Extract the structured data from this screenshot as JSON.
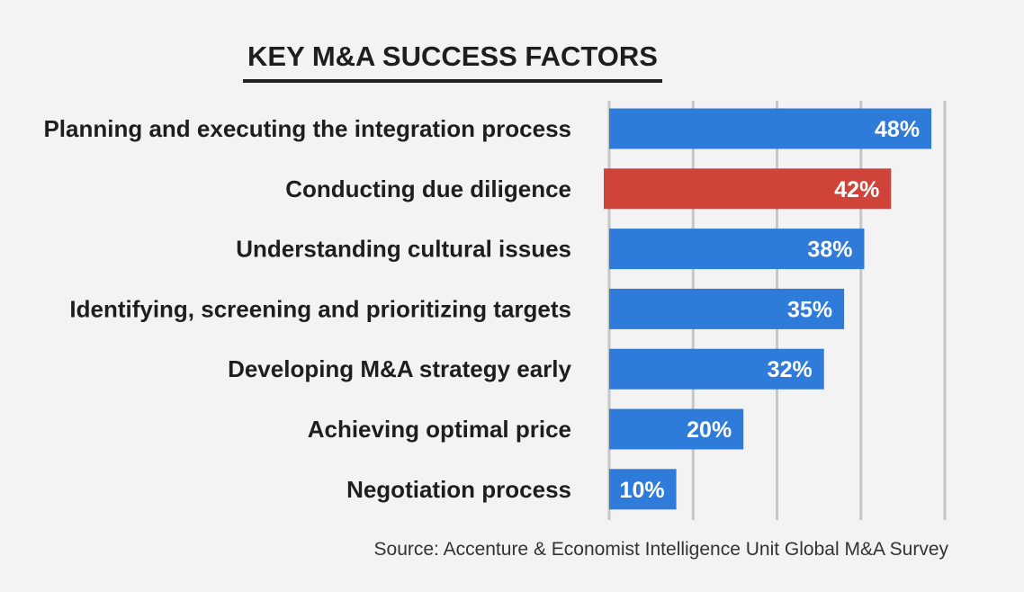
{
  "chart_data": {
    "type": "bar",
    "orientation": "horizontal",
    "title": "KEY M&A SUCCESS FACTORS",
    "categories": [
      "Planning and executing the integration process",
      "Conducting due diligence",
      "Understanding cultural issues",
      "Identifying, screening and prioritizing targets",
      "Developing M&A strategy early",
      "Achieving optimal price",
      "Negotiation process"
    ],
    "values": [
      48,
      42,
      38,
      35,
      32,
      20,
      10
    ],
    "value_labels": [
      "48%",
      "42%",
      "38%",
      "35%",
      "32%",
      "20%",
      "10%"
    ],
    "highlight_index": 1,
    "xlim": [
      0,
      50
    ],
    "x_gridlines": [
      0,
      12.5,
      25,
      37.5,
      50
    ],
    "grid": true,
    "xlabel": "",
    "ylabel": "",
    "source": "Source: Accenture & Economist Intelligence Unit Global M&A Survey"
  },
  "colors": {
    "bar": "#2f7bd9",
    "highlight": "#cf4338",
    "title_underline": "#222222",
    "background": "#f3f3f3"
  }
}
